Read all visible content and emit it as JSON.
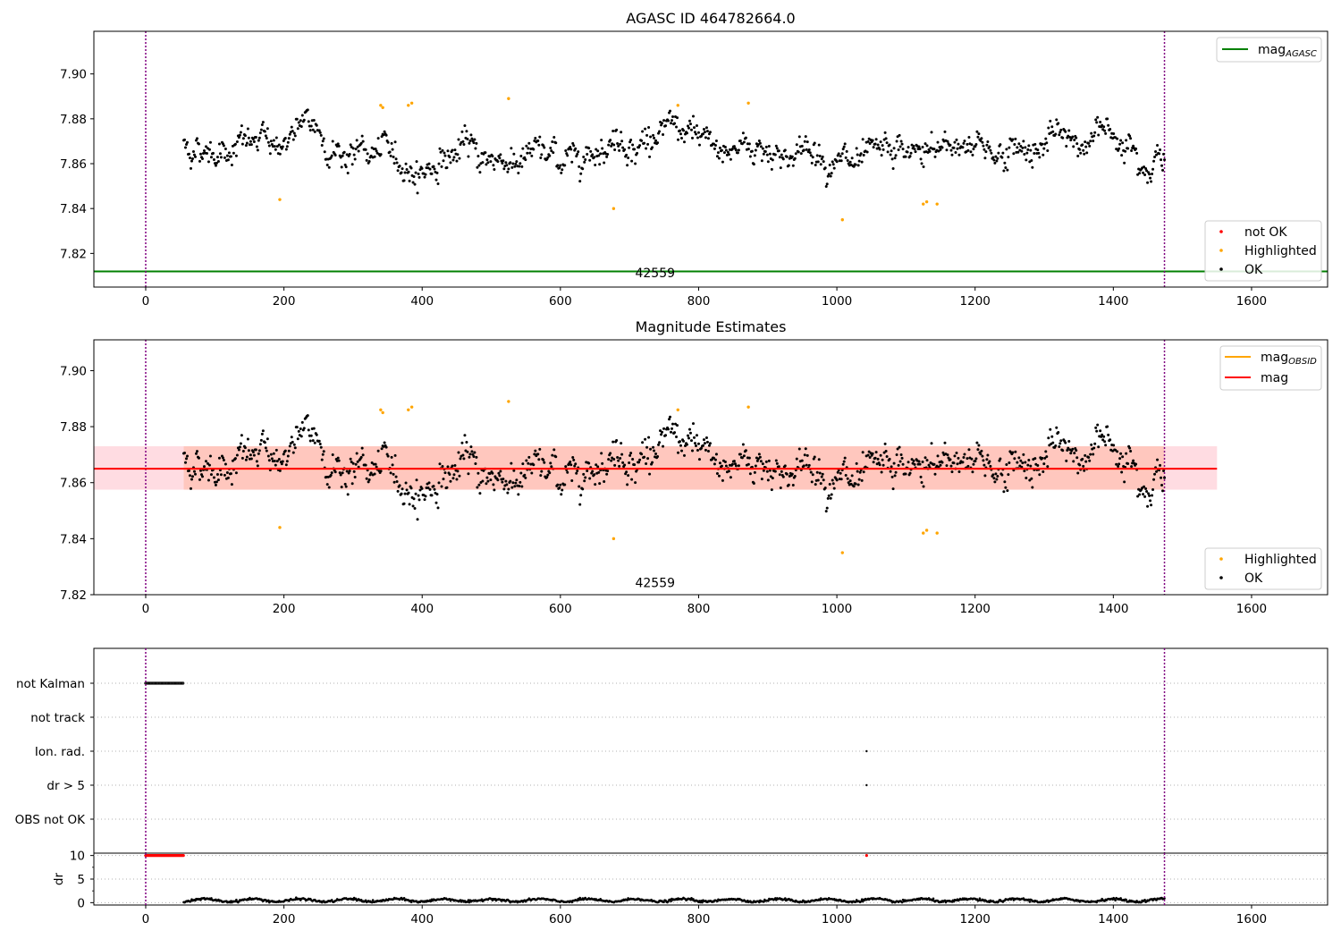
{
  "figure": {
    "background": "#ffffff"
  },
  "chart_data": [
    {
      "type": "scatter",
      "title": "AGASC ID 464782664.0",
      "xlim": [
        -75,
        1710
      ],
      "ylim": [
        7.805,
        7.919
      ],
      "x_ticks": [
        "0",
        "200",
        "400",
        "600",
        "800",
        "1000",
        "1200",
        "1400",
        "1600"
      ],
      "y_ticks": [
        "7.82",
        "7.84",
        "7.86",
        "7.88",
        "7.90"
      ],
      "vlines": [
        0,
        1474
      ],
      "vline_color": "#800080",
      "obsid_label": {
        "text": "42559",
        "x": 737,
        "y": 7.811
      },
      "mag_agasc": 7.812,
      "mag_agasc_color": "#008000",
      "series_info": {
        "x_start": 55,
        "x_end": 1474,
        "n": 1100,
        "center": 7.866,
        "spread": 0.007
      },
      "highlighted": {
        "x": [
          194,
          340,
          343,
          380,
          385,
          525,
          677,
          770,
          872,
          1008,
          1125,
          1130,
          1145
        ],
        "y": [
          7.844,
          7.886,
          7.885,
          7.886,
          7.887,
          7.889,
          7.84,
          7.886,
          7.887,
          7.835,
          7.842,
          7.843,
          7.842
        ],
        "color": "#ffa500"
      },
      "legend_lines": [
        {
          "label": "mag",
          "sub": "AGASC",
          "color": "#008000"
        }
      ],
      "legend_points": [
        {
          "label": "not OK",
          "color": "#ff0000"
        },
        {
          "label": "Highlighted",
          "color": "#ffa500"
        },
        {
          "label": "OK",
          "color": "#000000"
        }
      ]
    },
    {
      "type": "scatter",
      "title": "Magnitude Estimates",
      "xlim": [
        -75,
        1710
      ],
      "ylim": [
        7.82,
        7.911
      ],
      "x_ticks": [
        "0",
        "200",
        "400",
        "600",
        "800",
        "1000",
        "1200",
        "1400",
        "1600"
      ],
      "y_ticks": [
        "7.82",
        "7.84",
        "7.86",
        "7.88",
        "7.90"
      ],
      "vlines": [
        0,
        1474
      ],
      "obsid_label": {
        "text": "42559",
        "x": 737,
        "y": 7.824
      },
      "mag": 7.865,
      "mag_color": "#ff0000",
      "mag_obsid": 7.865,
      "mag_obsid_color": "#ffa500",
      "band": {
        "low": 7.8575,
        "high": 7.873,
        "x_start": -75,
        "x_end": 1550,
        "color": "#ffc0cb"
      },
      "band_obsid": {
        "low": 7.8575,
        "high": 7.873,
        "x_start": 55,
        "x_end": 1474,
        "color": "#ffa07a"
      },
      "legend_lines": [
        {
          "label": "mag",
          "sub": "OBSID",
          "color": "#ffa500"
        },
        {
          "label": "mag",
          "sub": "",
          "color": "#ff0000"
        }
      ],
      "legend_points": [
        {
          "label": "Highlighted",
          "color": "#ffa500"
        },
        {
          "label": "OK",
          "color": "#000000"
        }
      ]
    },
    {
      "type": "scatter",
      "title": "",
      "xlim": [
        -75,
        1710
      ],
      "x_ticks": [
        "0",
        "200",
        "400",
        "600",
        "800",
        "1000",
        "1200",
        "1400",
        "1600"
      ],
      "flag_rows": [
        "not Kalman",
        "not track",
        "Ion. rad.",
        "dr > 5",
        "OBS not OK"
      ],
      "flag_points": {
        "not Kalman": {
          "x_start": 0,
          "x_end": 55
        },
        "Ion. rad.": {
          "x": [
            1043
          ]
        },
        "dr > 5": {
          "x": [
            1043
          ]
        }
      },
      "vlines": [
        0,
        1474
      ]
    },
    {
      "type": "scatter",
      "title": "",
      "ylabel": "dr",
      "xlim": [
        -75,
        1710
      ],
      "ylim": [
        -0.5,
        10.5
      ],
      "x_ticks": [
        "0",
        "200",
        "400",
        "600",
        "800",
        "1000",
        "1200",
        "1400",
        "1600"
      ],
      "y_ticks": [
        "0",
        "5",
        "10"
      ],
      "capped": {
        "x_start": 0,
        "x_end": 55,
        "x_extra": [
          1043
        ],
        "y": 10,
        "color": "#ff0000"
      },
      "dr_series": {
        "x_start": 55,
        "x_end": 1474,
        "center": 0.5
      },
      "vlines": [
        0,
        1474
      ]
    }
  ]
}
